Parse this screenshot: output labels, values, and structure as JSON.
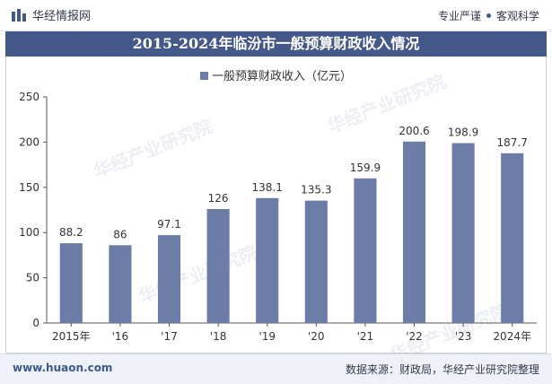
{
  "header": {
    "brand_name": "华经情报网",
    "tagline_left": "专业严谨",
    "tagline_right": "客观科学"
  },
  "title": "2015-2024年临汾市一般预算财政收入情况",
  "chart_data": {
    "type": "bar",
    "categories": [
      "2015年",
      "'16",
      "'17",
      "'18",
      "'19",
      "'20",
      "'21",
      "'22",
      "'23",
      "2024年"
    ],
    "series": [
      {
        "name": "一般预算财政收入（亿元）",
        "values": [
          88.2,
          86,
          97.1,
          126,
          138.1,
          135.3,
          159.9,
          200.6,
          198.9,
          187.7
        ],
        "color": "#6b7ca6"
      }
    ],
    "yticks": [
      "0",
      "50",
      "100",
      "150",
      "200",
      "250"
    ],
    "ylim": [
      0,
      250
    ],
    "grid": false,
    "legend_position": "top-center"
  },
  "watermark": "华经产业研究院",
  "footer": {
    "site": "www.huaon.com",
    "source": "数据来源：财政局，华经产业研究院整理"
  }
}
